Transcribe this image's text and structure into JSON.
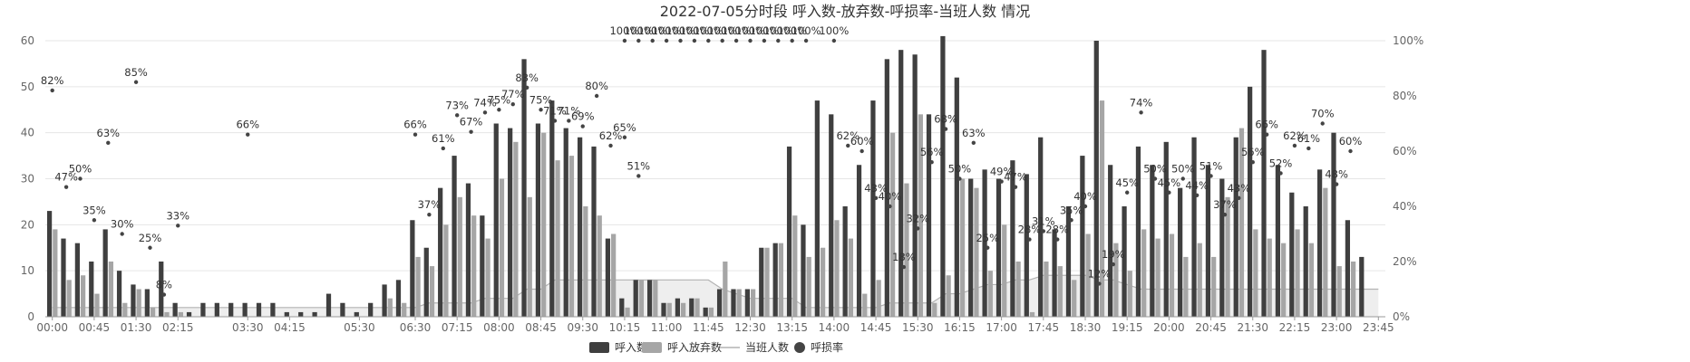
{
  "chart_data": {
    "type": "bar",
    "title": "2022-07-05分时段 呼入数-放弃数-呼损率-当班人数 情况",
    "categories": [
      "00:00",
      "00:15",
      "00:30",
      "00:45",
      "01:00",
      "01:15",
      "01:30",
      "01:45",
      "02:00",
      "02:15",
      "02:30",
      "02:45",
      "03:00",
      "03:15",
      "03:30",
      "03:45",
      "04:00",
      "04:15",
      "04:30",
      "04:45",
      "05:00",
      "05:15",
      "05:30",
      "05:45",
      "06:00",
      "06:15",
      "06:30",
      "06:45",
      "07:00",
      "07:15",
      "07:30",
      "07:45",
      "08:00",
      "08:15",
      "08:30",
      "08:45",
      "09:00",
      "09:15",
      "09:30",
      "09:45",
      "10:00",
      "10:15",
      "10:30",
      "10:45",
      "11:00",
      "11:15",
      "11:30",
      "11:45",
      "12:00",
      "12:15",
      "12:30",
      "12:45",
      "13:00",
      "13:15",
      "13:30",
      "13:45",
      "14:00",
      "14:15",
      "14:30",
      "14:45",
      "15:00",
      "15:15",
      "15:30",
      "15:45",
      "16:00",
      "16:15",
      "16:30",
      "16:45",
      "17:00",
      "17:15",
      "17:30",
      "17:45",
      "18:00",
      "18:15",
      "18:30",
      "18:45",
      "19:00",
      "19:15",
      "19:30",
      "19:45",
      "20:00",
      "20:15",
      "20:30",
      "20:45",
      "21:00",
      "21:15",
      "21:30",
      "21:45",
      "22:00",
      "22:15",
      "22:30",
      "22:45",
      "23:00",
      "23:15",
      "23:30",
      "23:45"
    ],
    "x_tick_labels": [
      "00:00",
      "00:45",
      "01:30",
      "02:15",
      "03:30",
      "04:15",
      "05:30",
      "06:30",
      "07:15",
      "08:00",
      "08:45",
      "09:30",
      "10:15",
      "11:00",
      "11:45",
      "12:30",
      "13:15",
      "14:00",
      "14:45",
      "15:30",
      "16:15",
      "17:00",
      "17:45",
      "18:30",
      "19:15",
      "20:00",
      "20:45",
      "21:30",
      "22:15",
      "23:00",
      "23:45"
    ],
    "series": [
      {
        "name": "呼入数",
        "color": "#3f3f3f",
        "type": "bar",
        "values": [
          23,
          17,
          16,
          12,
          19,
          10,
          7,
          6,
          12,
          3,
          1,
          3,
          3,
          3,
          3,
          3,
          3,
          1,
          1,
          1,
          5,
          3,
          1,
          3,
          7,
          8,
          21,
          15,
          28,
          35,
          29,
          22,
          42,
          41,
          56,
          42,
          47,
          41,
          39,
          37,
          17,
          4,
          8,
          8,
          3,
          4,
          4,
          2,
          6,
          6,
          6,
          15,
          16,
          37,
          20,
          47,
          44,
          24,
          33,
          47,
          56,
          58,
          57,
          44,
          61,
          52,
          30,
          32,
          30,
          34,
          31,
          39,
          19,
          24,
          35,
          60,
          33,
          24,
          37,
          33,
          38,
          28,
          39,
          33,
          30,
          39,
          50,
          58,
          33,
          27,
          24,
          32,
          40,
          21,
          13,
          0
        ]
      },
      {
        "name": "呼入放弃数",
        "color": "#a6a6a6",
        "type": "bar",
        "values": [
          19,
          8,
          9,
          5,
          12,
          3,
          6,
          2,
          1,
          1,
          0,
          0,
          0,
          0,
          0,
          0,
          0,
          0,
          0,
          0,
          0,
          0,
          0,
          0,
          4,
          3,
          13,
          11,
          20,
          26,
          22,
          17,
          30,
          38,
          26,
          40,
          34,
          35,
          24,
          22,
          18,
          2,
          8,
          8,
          3,
          3,
          4,
          2,
          12,
          6,
          6,
          15,
          16,
          22,
          13,
          15,
          21,
          17,
          5,
          8,
          40,
          29,
          44,
          3,
          9,
          30,
          28,
          10,
          20,
          12,
          1,
          12,
          11,
          8,
          18,
          47,
          16,
          10,
          19,
          17,
          18,
          13,
          16,
          13,
          26,
          41,
          19,
          17,
          16,
          19,
          16,
          28,
          11,
          12,
          0,
          0
        ]
      },
      {
        "name": "当班人数",
        "color": "#cccccc",
        "type": "area",
        "values": [
          2,
          2,
          2,
          2,
          2,
          2,
          2,
          2,
          2,
          2,
          2,
          2,
          2,
          2,
          2,
          2,
          2,
          2,
          2,
          2,
          2,
          2,
          2,
          2,
          2,
          2,
          2,
          3,
          3,
          3,
          3,
          4,
          4,
          4,
          6,
          6,
          8,
          8,
          8,
          8,
          8,
          8,
          8,
          8,
          8,
          8,
          8,
          8,
          6,
          5,
          4,
          4,
          4,
          4,
          2,
          2,
          2,
          2,
          2,
          2,
          3,
          3,
          3,
          3,
          5,
          5,
          6,
          7,
          7,
          8,
          8,
          9,
          9,
          9,
          9,
          8,
          8,
          7,
          6,
          6,
          6,
          6,
          6,
          6,
          6,
          6,
          6,
          6,
          6,
          6,
          6,
          6,
          6,
          6,
          6,
          6
        ]
      },
      {
        "name": "呼损率",
        "color": "#444444",
        "type": "scatter",
        "unit": "%",
        "points": [
          [
            0,
            82
          ],
          [
            1,
            47
          ],
          [
            2,
            50
          ],
          [
            3,
            35
          ],
          [
            4,
            63
          ],
          [
            5,
            30
          ],
          [
            6,
            85
          ],
          [
            7,
            25
          ],
          [
            8,
            8
          ],
          [
            9,
            33
          ],
          [
            14,
            66
          ],
          [
            26,
            66
          ],
          [
            27,
            37
          ],
          [
            28,
            61
          ],
          [
            29,
            73
          ],
          [
            30,
            67
          ],
          [
            31,
            74
          ],
          [
            32,
            75
          ],
          [
            33,
            77
          ],
          [
            34,
            83
          ],
          [
            35,
            75
          ],
          [
            36,
            71
          ],
          [
            37,
            71
          ],
          [
            38,
            69
          ],
          [
            39,
            80
          ],
          [
            40,
            62
          ],
          [
            41,
            65
          ],
          [
            42,
            51
          ],
          [
            41,
            100
          ],
          [
            42,
            100
          ],
          [
            43,
            100
          ],
          [
            44,
            100
          ],
          [
            45,
            100
          ],
          [
            46,
            100
          ],
          [
            47,
            100
          ],
          [
            48,
            100
          ],
          [
            49,
            100
          ],
          [
            50,
            100
          ],
          [
            51,
            100
          ],
          [
            52,
            100
          ],
          [
            53,
            100
          ],
          [
            54,
            100
          ],
          [
            56,
            100
          ],
          [
            57,
            62
          ],
          [
            58,
            60
          ],
          [
            59,
            43
          ],
          [
            60,
            40
          ],
          [
            61,
            18
          ],
          [
            62,
            32
          ],
          [
            63,
            56
          ],
          [
            64,
            68
          ],
          [
            65,
            50
          ],
          [
            66,
            63
          ],
          [
            67,
            25
          ],
          [
            68,
            49
          ],
          [
            69,
            47
          ],
          [
            70,
            28
          ],
          [
            71,
            31
          ],
          [
            72,
            28
          ],
          [
            73,
            35
          ],
          [
            74,
            40
          ],
          [
            75,
            12
          ],
          [
            76,
            19
          ],
          [
            77,
            45
          ],
          [
            78,
            74
          ],
          [
            79,
            50
          ],
          [
            80,
            45
          ],
          [
            81,
            50
          ],
          [
            82,
            44
          ],
          [
            83,
            51
          ],
          [
            84,
            37
          ],
          [
            85,
            43
          ],
          [
            86,
            56
          ],
          [
            87,
            66
          ],
          [
            88,
            52
          ],
          [
            89,
            62
          ],
          [
            90,
            61
          ],
          [
            91,
            70
          ],
          [
            92,
            48
          ],
          [
            93,
            60
          ]
        ]
      }
    ],
    "y_left": {
      "min": 0,
      "max": 60,
      "ticks": [
        0,
        10,
        20,
        30,
        40,
        50,
        60
      ]
    },
    "y_right": {
      "min": 0,
      "max": 100,
      "ticks": [
        "0%",
        "20%",
        "40%",
        "60%",
        "80%",
        "100%"
      ]
    },
    "legend": {
      "position": "bottom-center",
      "items": [
        "呼入数",
        "呼入放弃数",
        "当班人数",
        "呼损率"
      ]
    },
    "grid": true
  }
}
